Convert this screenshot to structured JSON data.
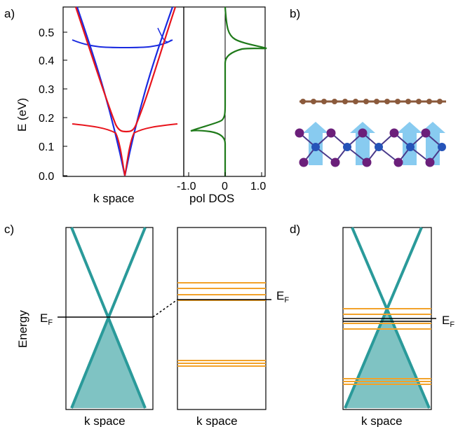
{
  "panels": {
    "a": "a)",
    "b": "b)",
    "c": "c)",
    "d": "d)"
  },
  "panel_a": {
    "ylabel": "E (eV)",
    "xlabel_bands": "k space",
    "xlabel_dos": "pol DOS",
    "y_ticks": [
      "0.0",
      "0.1",
      "0.2",
      "0.3",
      "0.4",
      "0.5"
    ],
    "dos_ticks": [
      "-1.0",
      "0",
      "1.0"
    ]
  },
  "panel_c": {
    "ylabel": "Energy",
    "fermi_label_left": "E",
    "fermi_sub_left": "F",
    "fermi_label_right": "E",
    "fermi_sub_right": "F",
    "xlabel_left": "k space",
    "xlabel_right": "k space"
  },
  "panel_d": {
    "fermi_label": "E",
    "fermi_sub": "F",
    "xlabel": "k space"
  },
  "colors": {
    "blue_band": "#1a2be0",
    "red_band": "#e8141c",
    "dos_green": "#1f7a1a",
    "teal": "#2a9a9a",
    "teal_fill": "#7fc3c3",
    "orange": "#f2a22a",
    "graphene": "#8b5a3c",
    "mo_blue": "#2553b8",
    "s_purple": "#6b1f7a",
    "arrow_blue": "#7cc6ef"
  },
  "chart_data": [
    {
      "type": "line",
      "title": "",
      "xlabel": "k space",
      "ylabel": "E (eV)",
      "ylim": [
        0.0,
        0.58
      ],
      "y_ticks": [
        0.0,
        0.1,
        0.2,
        0.3,
        0.4,
        0.5
      ],
      "series": [
        {
          "color": "blue",
          "k": [
            -1,
            -0.8,
            -0.6,
            -0.4,
            -0.2,
            0,
            0.2,
            0.4,
            0.6,
            0.8,
            1
          ],
          "values_upper": [
            0.58,
            0.5,
            0.46,
            0.455,
            0.452,
            0.452,
            0.452,
            0.455,
            0.46,
            0.5,
            0.58
          ],
          "values_lower": [
            0.48,
            0.41,
            0.31,
            0.21,
            0.11,
            0.0,
            0.11,
            0.21,
            0.31,
            0.41,
            0.48
          ]
        },
        {
          "color": "red",
          "k": [
            -1,
            -0.8,
            -0.6,
            -0.4,
            -0.2,
            0,
            0.2,
            0.4,
            0.6,
            0.8,
            1
          ],
          "values_upper": [
            0.58,
            0.48,
            0.37,
            0.27,
            0.17,
            0.155,
            0.17,
            0.27,
            0.37,
            0.48,
            0.58
          ],
          "values_lower": [
            0.18,
            0.175,
            0.17,
            0.16,
            0.12,
            0.0,
            0.12,
            0.16,
            0.17,
            0.175,
            0.18
          ]
        }
      ]
    },
    {
      "type": "line",
      "title": "",
      "xlabel": "pol DOS",
      "xlim": [
        -1.5,
        1.5
      ],
      "x_ticks": [
        -1.0,
        0,
        1.0
      ],
      "ylim": [
        0.0,
        0.58
      ],
      "peaks": [
        {
          "E": 0.155,
          "pol": -1.0
        },
        {
          "E": 0.45,
          "pol": 1.1
        }
      ]
    }
  ]
}
